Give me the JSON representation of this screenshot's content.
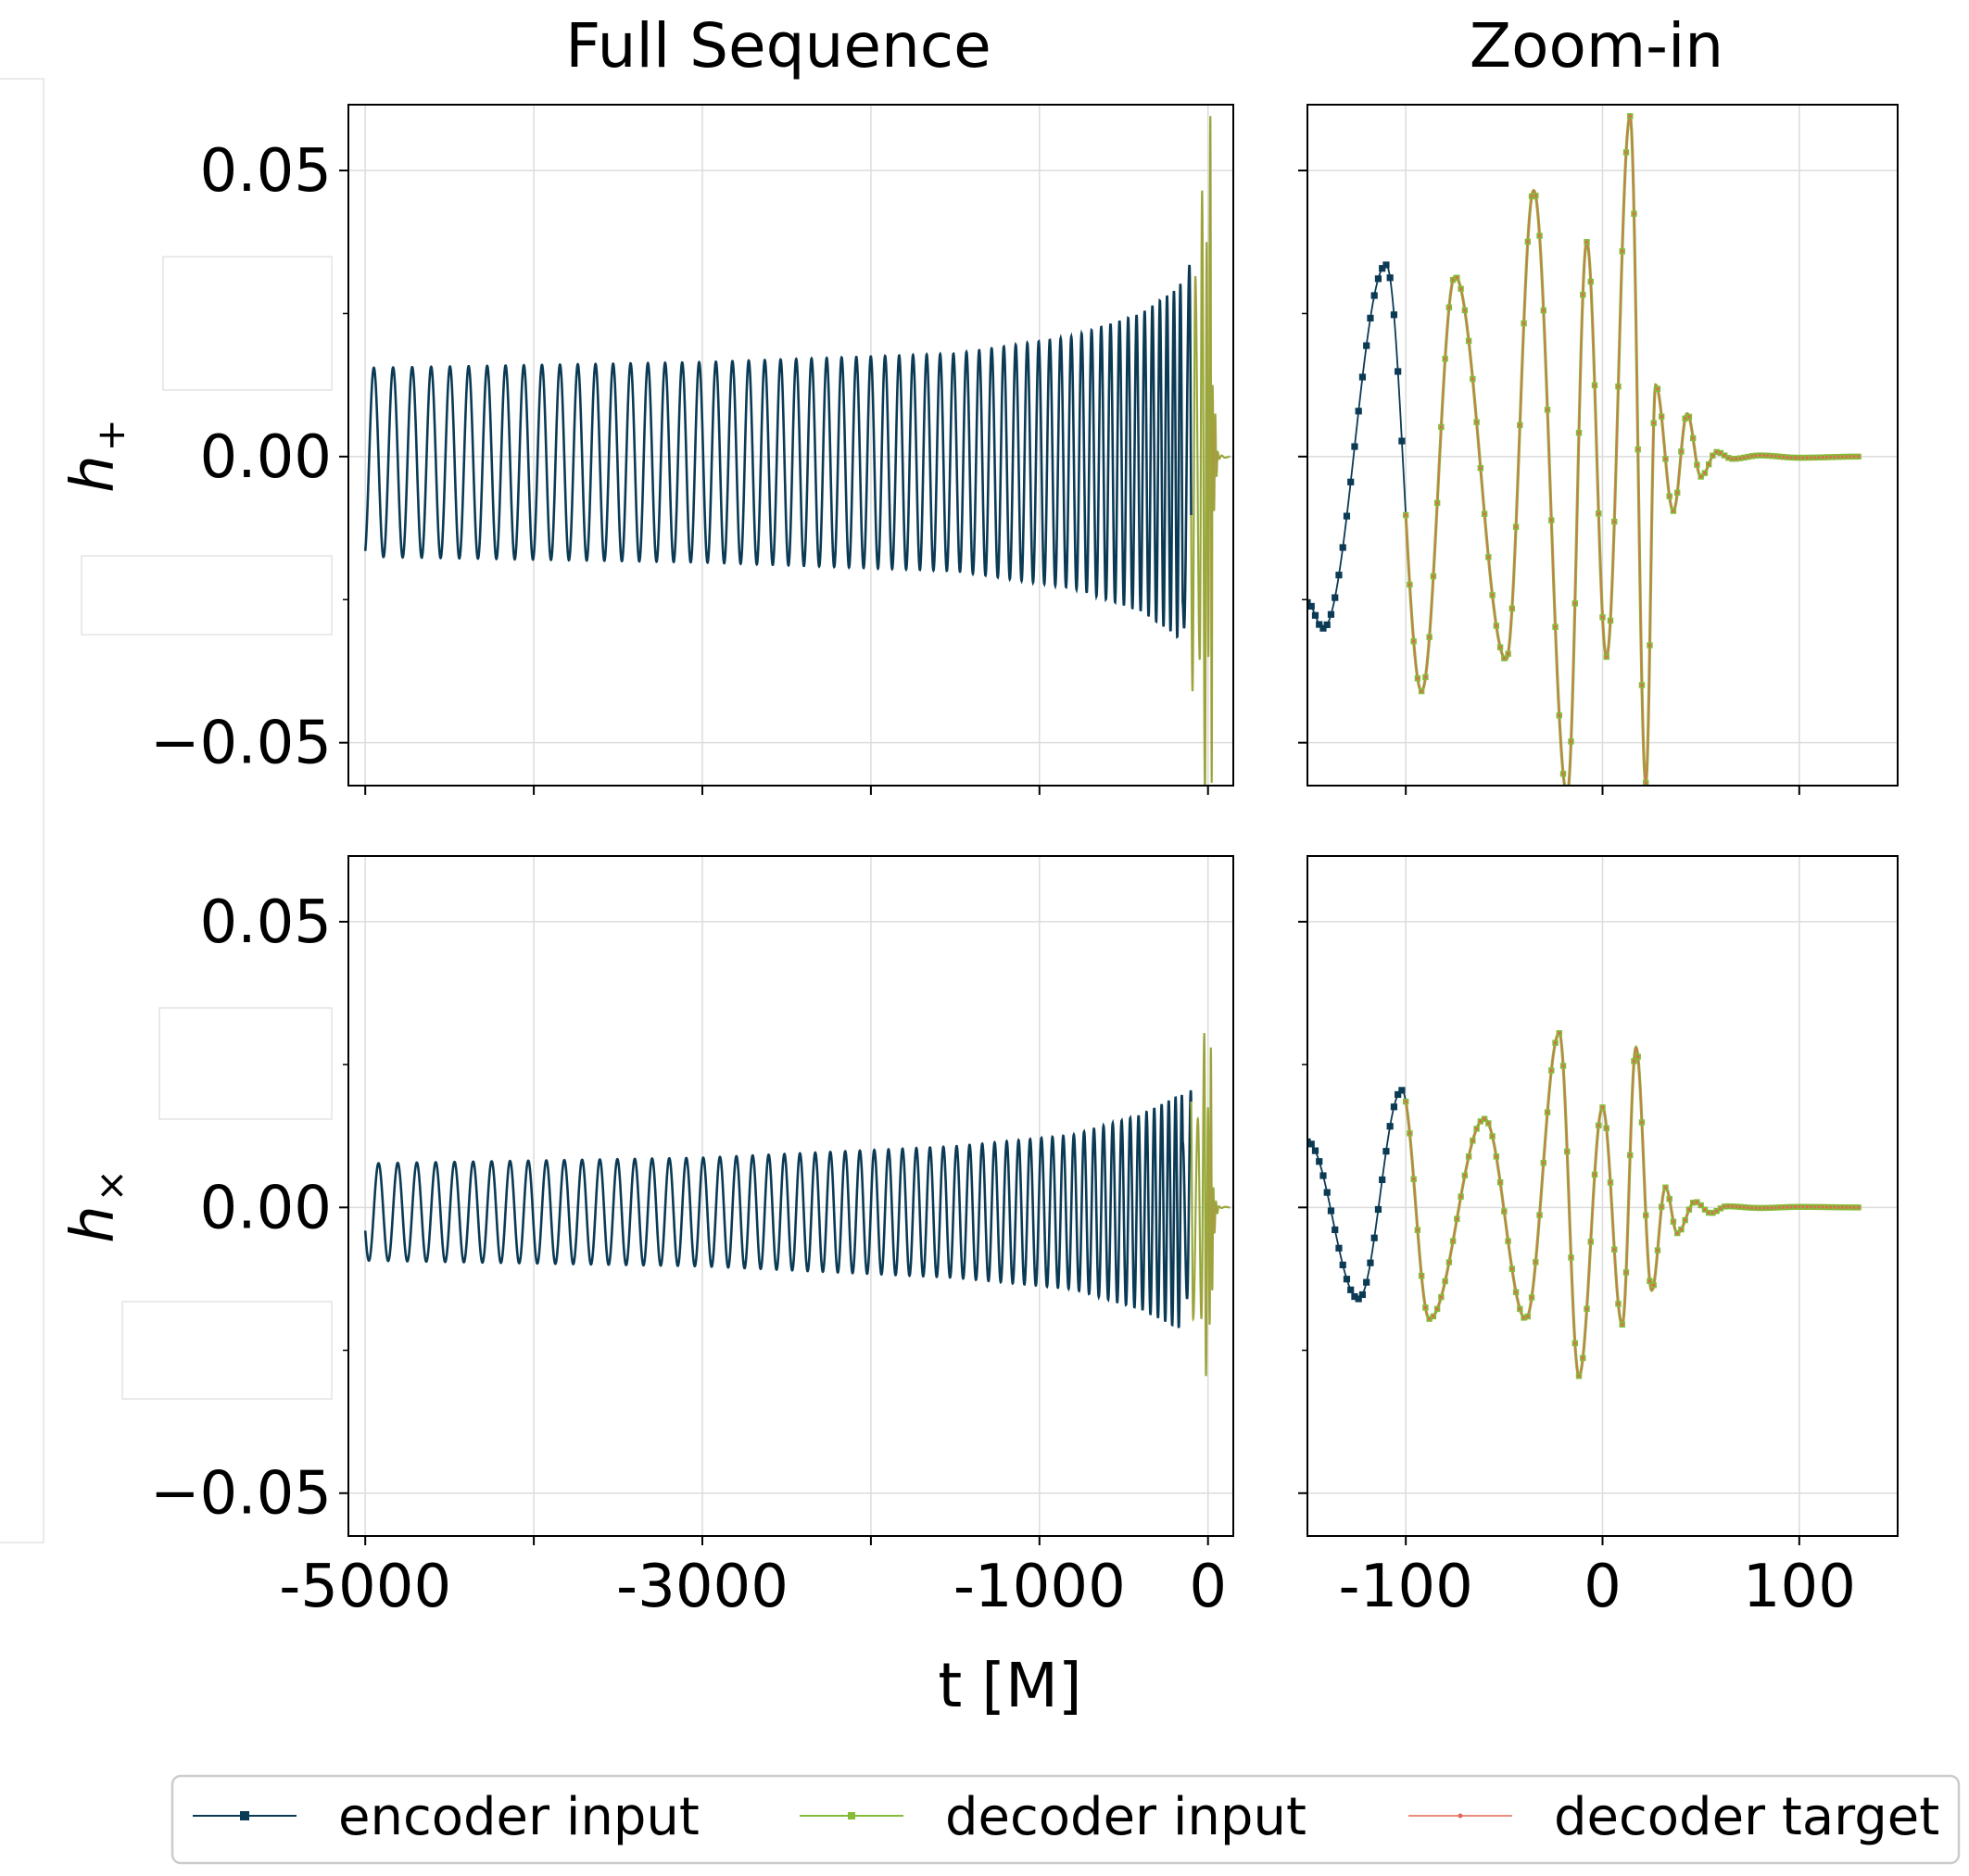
{
  "chart_data": {
    "type": "line",
    "column_titles": [
      "Full Sequence",
      "Zoom-in"
    ],
    "xlabel": "t [M]",
    "row_ylabels": [
      "h",
      "h"
    ],
    "row_ylabel_subscripts": [
      "+",
      "×"
    ],
    "ylim": [
      -0.0575,
      0.0615
    ],
    "y_ticks": [
      -0.05,
      0.0,
      0.05
    ],
    "y_tick_labels": [
      "−0.05",
      "0.00",
      "0.05"
    ],
    "full_xlim": [
      -5100,
      150
    ],
    "full_x_ticks": [
      -5000,
      -3000,
      -1000,
      0
    ],
    "full_x_tick_labels": [
      "-5000",
      "-3000",
      "-1000",
      "0"
    ],
    "full_x_minor_ticks": [
      -4000,
      -2000
    ],
    "zoom_xlim": [
      -150,
      150
    ],
    "zoom_x_ticks": [
      -100,
      0,
      100
    ],
    "zoom_x_tick_labels": [
      "-100",
      "0",
      "100"
    ],
    "grid": true,
    "legend": {
      "placement": "bottom",
      "entries": [
        {
          "name": "encoder input",
          "color": "#0b3a55",
          "marker": "square"
        },
        {
          "name": "decoder input",
          "color": "#86bb38",
          "marker": "square"
        },
        {
          "name": "decoder target",
          "color": "#e26855",
          "marker": "dot"
        }
      ]
    },
    "waveform": {
      "encoder_range": [
        -5000,
        -100
      ],
      "decoder_range": [
        -100,
        130
      ],
      "zoom_encoder_start": -150,
      "h_plus": {
        "inspiral_amplitude": [
          [
            -5000,
            0.0165
          ],
          [
            -3000,
            0.0175
          ],
          [
            -1500,
            0.019
          ],
          [
            -800,
            0.022
          ],
          [
            -400,
            0.026
          ],
          [
            -200,
            0.03
          ],
          [
            -110,
            0.033
          ]
        ],
        "inspiral_offset": -0.001,
        "inspiral_periods": [
          [
            -5000,
            115
          ],
          [
            -3000,
            100
          ],
          [
            -1500,
            78
          ],
          [
            -800,
            62
          ],
          [
            -400,
            48
          ],
          [
            -200,
            40
          ],
          [
            -100,
            30
          ]
        ],
        "peaks": [
          [
            -150,
            -0.0255
          ],
          [
            -142,
            -0.03
          ],
          [
            -110,
            0.0335
          ],
          [
            -92,
            -0.041
          ],
          [
            -75,
            0.0315
          ],
          [
            -49,
            -0.0355
          ],
          [
            -35,
            0.0465
          ],
          [
            -18,
            -0.059
          ],
          [
            -8,
            0.0375
          ],
          [
            2,
            -0.035
          ],
          [
            14,
            0.0595
          ],
          [
            22,
            -0.057
          ],
          [
            27,
            0.0125
          ],
          [
            36,
            -0.0095
          ],
          [
            43,
            0.0075
          ],
          [
            50,
            -0.0035
          ],
          [
            58,
            0.0008
          ],
          [
            66,
            -0.0004
          ],
          [
            80,
            0.0002
          ],
          [
            100,
            -0.0002
          ],
          [
            130,
            0.0
          ]
        ]
      },
      "h_cross": {
        "inspiral_amplitude": [
          [
            -5000,
            0.0085
          ],
          [
            -3000,
            0.0095
          ],
          [
            -1500,
            0.0115
          ],
          [
            -800,
            0.0135
          ],
          [
            -400,
            0.017
          ],
          [
            -200,
            0.02
          ],
          [
            -110,
            0.021
          ]
        ],
        "inspiral_offset": -0.0008,
        "inspiral_periods": [
          [
            -5000,
            115
          ],
          [
            -3000,
            100
          ],
          [
            -1500,
            78
          ],
          [
            -800,
            62
          ],
          [
            -400,
            48
          ],
          [
            -200,
            40
          ],
          [
            -100,
            30
          ]
        ],
        "peaks": [
          [
            -150,
            0.0115
          ],
          [
            -124,
            -0.016
          ],
          [
            -102,
            0.0205
          ],
          [
            -88,
            -0.0195
          ],
          [
            -60,
            0.0155
          ],
          [
            -39,
            -0.0195
          ],
          [
            -22,
            0.0305
          ],
          [
            -12,
            -0.0295
          ],
          [
            0,
            0.0175
          ],
          [
            10,
            -0.0205
          ],
          [
            17,
            0.028
          ],
          [
            25,
            -0.0145
          ],
          [
            32,
            0.0035
          ],
          [
            38,
            -0.0045
          ],
          [
            47,
            0.001
          ],
          [
            55,
            -0.001
          ],
          [
            63,
            0.0002
          ],
          [
            80,
            -0.0001
          ],
          [
            100,
            0.0001
          ],
          [
            130,
            0.0
          ]
        ]
      }
    }
  }
}
